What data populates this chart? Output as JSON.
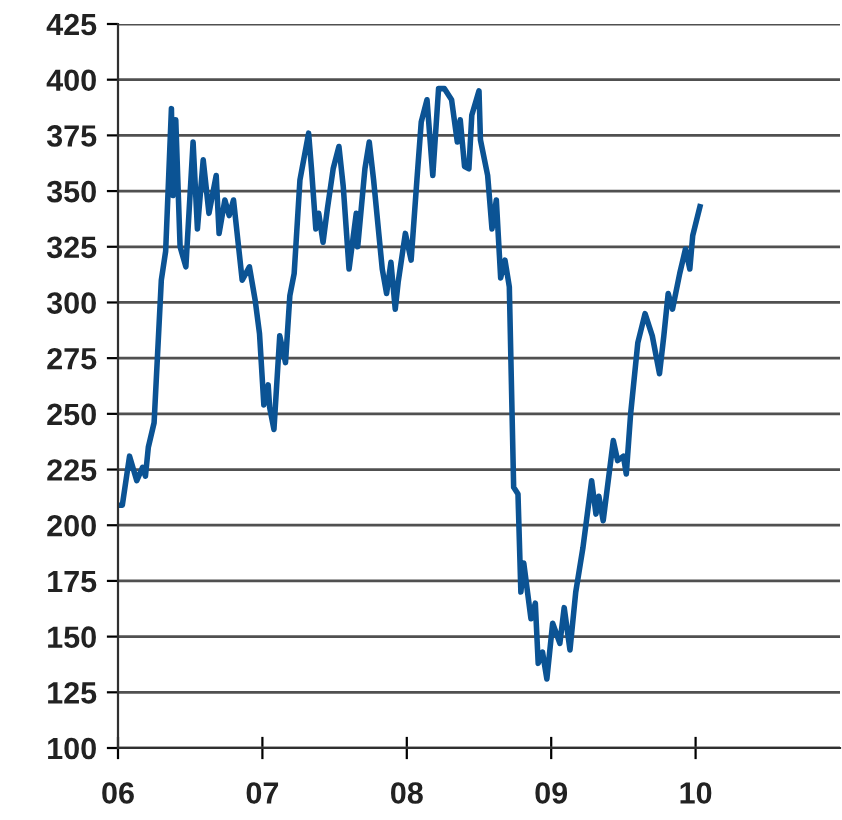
{
  "chart_data": {
    "type": "line",
    "xlim": [
      2006,
      2011
    ],
    "ylim": [
      100,
      425
    ],
    "xticks": [
      {
        "value": 2006,
        "label": "06"
      },
      {
        "value": 2007,
        "label": "07"
      },
      {
        "value": 2008,
        "label": "08"
      },
      {
        "value": 2009,
        "label": "09"
      },
      {
        "value": 2010,
        "label": "10"
      }
    ],
    "yticks": [
      100,
      125,
      150,
      175,
      200,
      225,
      250,
      275,
      300,
      325,
      350,
      375,
      400,
      425
    ],
    "grid": "y",
    "marker": "none",
    "line_style": "solid",
    "series": [
      {
        "color": "#0b5394",
        "x": [
          2006.0,
          2006.03,
          2006.08,
          2006.13,
          2006.17,
          2006.19,
          2006.21,
          2006.25,
          2006.3,
          2006.33,
          2006.37,
          2006.38,
          2006.4,
          2006.43,
          2006.47,
          2006.52,
          2006.55,
          2006.59,
          2006.63,
          2006.68,
          2006.7,
          2006.74,
          2006.77,
          2006.8,
          2006.86,
          2006.91,
          2006.95,
          2006.98,
          2007.01,
          2007.04,
          2007.05,
          2007.08,
          2007.12,
          2007.16,
          2007.19,
          2007.22,
          2007.26,
          2007.32,
          2007.34,
          2007.37,
          2007.39,
          2007.42,
          2007.45,
          2007.49,
          2007.53,
          2007.56,
          2007.6,
          2007.65,
          2007.66,
          2007.71,
          2007.74,
          2007.77,
          2007.83,
          2007.86,
          2007.89,
          2007.92,
          2007.94,
          2007.99,
          2008.03,
          2008.07,
          2008.1,
          2008.14,
          2008.18,
          2008.22,
          2008.26,
          2008.31,
          2008.35,
          2008.37,
          2008.4,
          2008.43,
          2008.45,
          2008.5,
          2008.51,
          2008.56,
          2008.59,
          2008.62,
          2008.65,
          2008.68,
          2008.71,
          2008.74,
          2008.77,
          2008.79,
          2008.81,
          2008.83,
          2008.86,
          2008.89,
          2008.91,
          2008.94,
          2008.97,
          2009.01,
          2009.06,
          2009.09,
          2009.13,
          2009.17,
          2009.22,
          2009.28,
          2009.31,
          2009.33,
          2009.36,
          2009.43,
          2009.46,
          2009.5,
          2009.52,
          2009.55,
          2009.6,
          2009.65,
          2009.7,
          2009.75,
          2009.78,
          2009.81,
          2009.84,
          2009.89,
          2009.93,
          2009.96,
          2009.98,
          2010.03
        ],
        "values": [
          209,
          209,
          231,
          220,
          226,
          222,
          235,
          246,
          310,
          323,
          387,
          348,
          382,
          325,
          316,
          372,
          333,
          364,
          340,
          357,
          331,
          346,
          339,
          346,
          310,
          316,
          301,
          286,
          254,
          263,
          253,
          243,
          285,
          273,
          303,
          313,
          355,
          376,
          360,
          333,
          340,
          327,
          342,
          360,
          370,
          352,
          315,
          340,
          325,
          360,
          372,
          355,
          315,
          304,
          318,
          297,
          309,
          331,
          319,
          355,
          381,
          391,
          357,
          396,
          396,
          391,
          372,
          382,
          361,
          360,
          384,
          395,
          373,
          357,
          333,
          346,
          311,
          319,
          307,
          217,
          214,
          170,
          183,
          173,
          158,
          165,
          138,
          143,
          131,
          156,
          147,
          163,
          144,
          170,
          190,
          220,
          205,
          213,
          202,
          238,
          229,
          231,
          223,
          250,
          282,
          295,
          285,
          268,
          285,
          304,
          297,
          313,
          324,
          315,
          330,
          343
        ]
      }
    ]
  }
}
